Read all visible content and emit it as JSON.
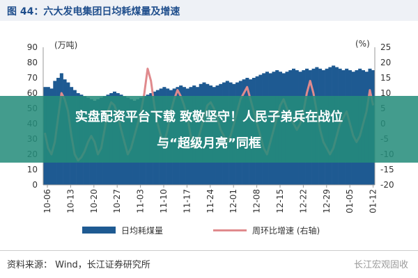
{
  "header": {
    "title": "图 44：六大发电集团日均耗煤量及增速"
  },
  "overlay": {
    "line1": "实盘配资平台下载 致敬坚守！人民子弟兵在战位",
    "line2": "与“超级月亮”同框"
  },
  "footer": {
    "source": "资料来源： Wind，长江证券研究所",
    "watermark": "长江宏观固收"
  },
  "colors": {
    "bar": "#1e5a92",
    "line": "#e08a8d",
    "overlay": "#248c7a",
    "title": "#1f4e8c"
  },
  "chart_data": {
    "type": "bar",
    "left_unit": "(万吨)",
    "right_unit": "(%)",
    "left_axis": {
      "ylim": [
        0,
        90
      ],
      "ticks": [
        0,
        10,
        20,
        30,
        40,
        50,
        60,
        70,
        80,
        90
      ]
    },
    "right_axis": {
      "ylim": [
        -20,
        25
      ],
      "ticks": [
        -20,
        -15,
        -10,
        -5,
        0,
        5,
        10,
        15,
        20,
        25
      ]
    },
    "x_tick_labels": [
      "10-06",
      "10-13",
      "10-20",
      "10-27",
      "11-03",
      "11-10",
      "11-17",
      "11-24",
      "12-01",
      "12-08",
      "12-15",
      "12-22",
      "12-29",
      "01-05",
      "01-12"
    ],
    "legend": [
      "日均耗煤量",
      "周环比增速  (右轴)"
    ],
    "legend_position": "bottom",
    "series": [
      {
        "name": "日均耗煤量",
        "axis": "left",
        "kind": "bar",
        "values": [
          64,
          64,
          63,
          68,
          70,
          73,
          69,
          67,
          64,
          62,
          60,
          59,
          58,
          57,
          56,
          55,
          56,
          57,
          58,
          59,
          60,
          61,
          60,
          59,
          58,
          57,
          56,
          55,
          56,
          57,
          58,
          59,
          60,
          61,
          62,
          63,
          64,
          63,
          62,
          63,
          64,
          65,
          64,
          63,
          64,
          65,
          64,
          66,
          67,
          66,
          65,
          64,
          65,
          66,
          67,
          68,
          67,
          66,
          67,
          68,
          69,
          70,
          69,
          70,
          71,
          72,
          73,
          74,
          73,
          74,
          75,
          74,
          73,
          74,
          75,
          76,
          75,
          74,
          75,
          76,
          75,
          76,
          77,
          76,
          75,
          76,
          77,
          78,
          77,
          76,
          75,
          76,
          75,
          74,
          75,
          76,
          75,
          74,
          76,
          75
        ]
      },
      {
        "name": "周环比增速  (右轴)",
        "axis": "right",
        "kind": "line",
        "values": [
          -3,
          -8,
          -10,
          -6,
          2,
          10,
          8,
          4,
          -4,
          -10,
          -12,
          -11,
          -9,
          -6,
          -4,
          -6,
          -10,
          -8,
          -2,
          4,
          7,
          6,
          3,
          -2,
          -6,
          -10,
          -8,
          -4,
          0,
          4,
          10,
          18,
          14,
          6,
          0,
          -4,
          -6,
          -2,
          4,
          8,
          11,
          9,
          6,
          2,
          -4,
          -8,
          -6,
          -2,
          2,
          6,
          7,
          5,
          2,
          -2,
          -4,
          -6,
          -4,
          0,
          4,
          8,
          10,
          12,
          8,
          4,
          0,
          -4,
          -8,
          -10,
          -6,
          -2,
          2,
          6,
          8,
          5,
          2,
          0,
          -2,
          0,
          4,
          10,
          14,
          10,
          4,
          -2,
          -6,
          -8,
          -10,
          -8,
          -4,
          0,
          2,
          4,
          0,
          -4,
          -6,
          -4,
          0,
          4,
          11,
          6
        ]
      }
    ]
  }
}
